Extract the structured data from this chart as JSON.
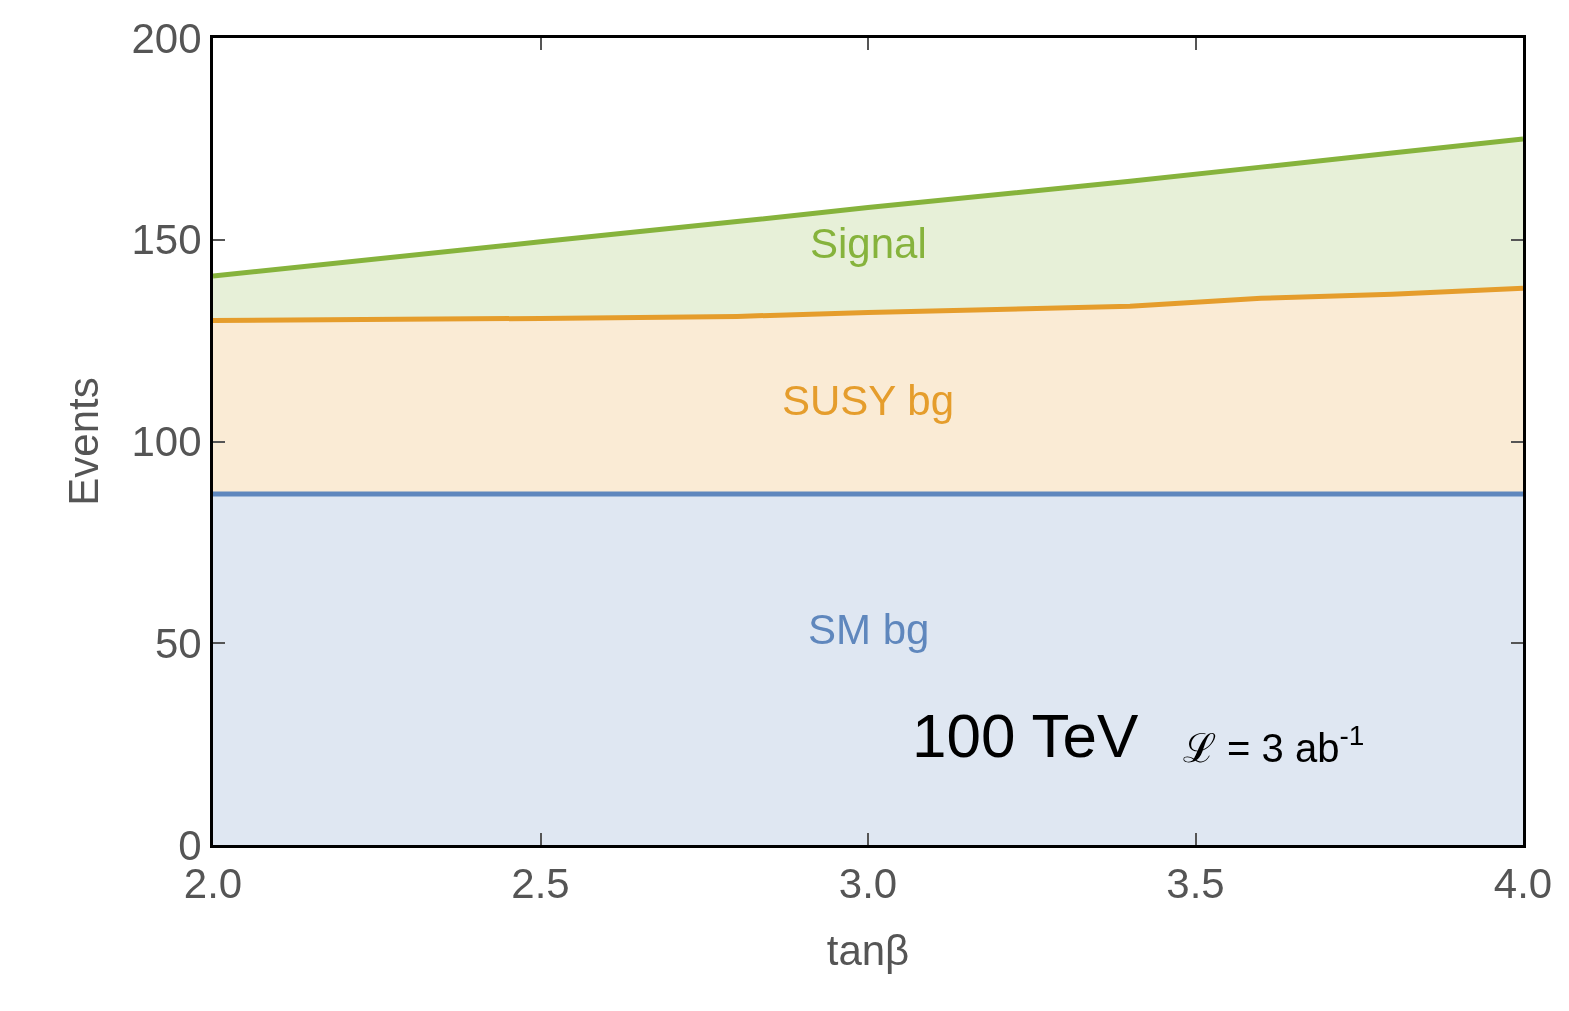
{
  "chart_data": {
    "type": "area",
    "xlabel": "tanβ",
    "ylabel": "Events",
    "x": [
      2.0,
      2.5,
      2.8,
      3.0,
      3.4,
      3.6,
      3.8,
      4.0
    ],
    "series": [
      {
        "name": "SM bg",
        "color": "#5f87bd",
        "values": [
          87,
          87,
          87,
          87,
          87,
          87,
          87,
          87
        ]
      },
      {
        "name": "SUSY bg",
        "color": "#e59d2c",
        "values": [
          130,
          130.5,
          131,
          132,
          133.5,
          135.5,
          136.5,
          138
        ]
      },
      {
        "name": "Signal",
        "color": "#86b33c",
        "values": [
          141,
          149.5,
          154.5,
          158,
          164.5,
          168,
          171.5,
          175
        ]
      }
    ],
    "xlim": [
      2.0,
      4.0
    ],
    "xticks": [
      {
        "value": 2,
        "label": "2.0"
      },
      2.5,
      {
        "value": 3,
        "label": "3.0"
      },
      3.5,
      {
        "value": 4,
        "label": "4.0"
      }
    ],
    "ylim": [
      0,
      200
    ],
    "yticks": [
      0,
      50,
      100,
      150,
      200
    ],
    "grid": false,
    "legend": false,
    "annotations": [
      "100 TeV",
      "ℒ = 3 ab$^{-1}$"
    ]
  }
}
